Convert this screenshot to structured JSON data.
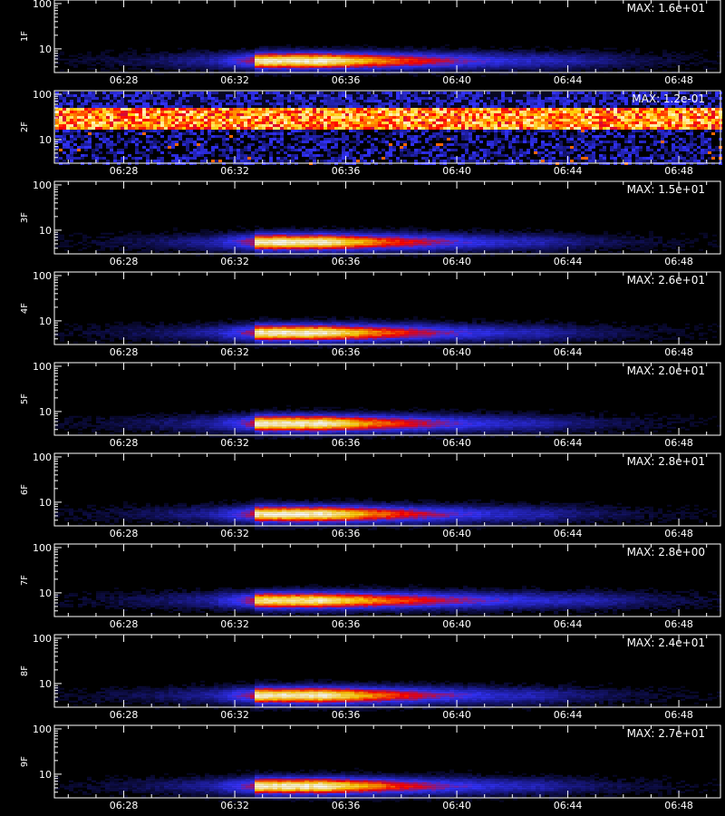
{
  "chart_data": {
    "type": "heatmap",
    "time_range": [
      "06:25:30",
      "06:49:30"
    ],
    "x_ticks": [
      "06:28",
      "06:32",
      "06:36",
      "06:40",
      "06:44",
      "06:48"
    ],
    "y_scale": "log",
    "ylim": [
      3,
      120
    ],
    "y_ticks": [
      "10",
      "100"
    ],
    "xaxis_title": "",
    "colormap": [
      "#000000",
      "#1a1a8c",
      "#3333ff",
      "#ff0000",
      "#ffcc00",
      "#ffffff"
    ],
    "panels": [
      {
        "label": "1F",
        "max_label": "MAX: 1.6e+01",
        "profile": "burst",
        "band": [
          4,
          8
        ],
        "onset": "06:32:40",
        "peak_end": "06:35:00",
        "decay_end": "06:44:00",
        "peak": 1.0
      },
      {
        "label": "2F",
        "max_label": "MAX: 1.2e-01",
        "profile": "noise",
        "band": [
          25,
          40
        ],
        "onset": "",
        "peak_end": "",
        "decay_end": "",
        "peak": 1.0
      },
      {
        "label": "3F",
        "max_label": "MAX: 1.5e+01",
        "profile": "burst",
        "band": [
          4,
          8
        ],
        "onset": "06:32:40",
        "peak_end": "06:35:00",
        "decay_end": "06:43:00",
        "peak": 1.0
      },
      {
        "label": "4F",
        "max_label": "MAX: 2.6e+01",
        "profile": "burst",
        "band": [
          4,
          8
        ],
        "onset": "06:32:40",
        "peak_end": "06:35:00",
        "decay_end": "06:43:00",
        "peak": 1.0
      },
      {
        "label": "5F",
        "max_label": "MAX: 2.0e+01",
        "profile": "burst",
        "band": [
          4,
          8
        ],
        "onset": "06:32:40",
        "peak_end": "06:35:00",
        "decay_end": "06:43:00",
        "peak": 1.0
      },
      {
        "label": "6F",
        "max_label": "MAX: 2.8e+01",
        "profile": "burst",
        "band": [
          4,
          8
        ],
        "onset": "06:32:40",
        "peak_end": "06:35:00",
        "decay_end": "06:43:00",
        "peak": 1.0
      },
      {
        "label": "7F",
        "max_label": "MAX: 2.8e+00",
        "profile": "burst",
        "band": [
          5,
          10
        ],
        "onset": "06:32:40",
        "peak_end": "06:35:00",
        "decay_end": "06:45:00",
        "peak": 0.95
      },
      {
        "label": "8F",
        "max_label": "MAX: 2.4e+01",
        "profile": "burst",
        "band": [
          4,
          8
        ],
        "onset": "06:32:40",
        "peak_end": "06:35:00",
        "decay_end": "06:43:00",
        "peak": 1.0
      },
      {
        "label": "9F",
        "max_label": "MAX: 2.7e+01",
        "profile": "burst",
        "band": [
          4,
          8
        ],
        "onset": "06:32:40",
        "peak_end": "06:35:00",
        "decay_end": "06:43:00",
        "peak": 1.0
      }
    ]
  }
}
